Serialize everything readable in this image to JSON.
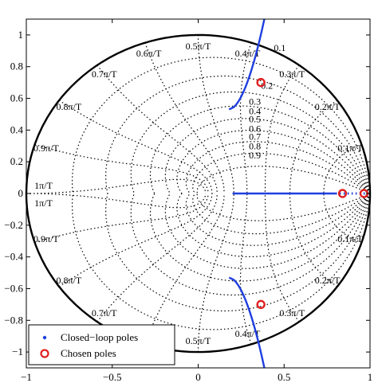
{
  "chart_data": {
    "type": "scatter",
    "xlim": [
      -1,
      1
    ],
    "ylim": [
      -1.1,
      1.1
    ],
    "x_ticks": [
      {
        "value": -1,
        "label": "−1"
      },
      {
        "value": -0.5,
        "label": "−0.5"
      },
      {
        "value": 0,
        "label": "0"
      },
      {
        "value": 0.5,
        "label": "0.5"
      },
      {
        "value": 1,
        "label": "1"
      }
    ],
    "y_ticks": [
      {
        "value": 1,
        "label": "1"
      },
      {
        "value": 0.8,
        "label": "0.8"
      },
      {
        "value": 0.6,
        "label": "0.6"
      },
      {
        "value": 0.4,
        "label": "0.4"
      },
      {
        "value": 0.2,
        "label": "0.2"
      },
      {
        "value": 0,
        "label": "0"
      },
      {
        "value": -0.2,
        "label": "−0.2"
      },
      {
        "value": -0.4,
        "label": "−0.4"
      },
      {
        "value": -0.6,
        "label": "−0.6"
      },
      {
        "value": -0.8,
        "label": "−0.8"
      },
      {
        "value": -1,
        "label": "−1"
      }
    ],
    "grid": "zgrid",
    "damping_values": [
      0.1,
      0.2,
      0.3,
      0.4,
      0.5,
      0.6,
      0.7,
      0.8,
      0.9
    ],
    "damping_labels": [
      "0.1",
      "0.2",
      "0.3",
      "0.4",
      "0.5",
      "0.6",
      "0.7",
      "0.8",
      "0.9"
    ],
    "natural_frequency_labels": [
      {
        "k": 0.1,
        "upper": "0.1π/T",
        "lower": "0.1π/T"
      },
      {
        "k": 0.2,
        "upper": "0.2π/T",
        "lower": "0.2π/T"
      },
      {
        "k": 0.3,
        "upper": "0.3π/T",
        "lower": "0.3π/T"
      },
      {
        "k": 0.4,
        "upper": "0.4π/T",
        "lower": "0.4π/T"
      },
      {
        "k": 0.5,
        "upper": "0.5π/T",
        "lower": "0.5π/T"
      },
      {
        "k": 0.6,
        "upper": "0.6π/T",
        "lower": "0.6π/T"
      },
      {
        "k": 0.7,
        "upper": "0.7π/T",
        "lower": "0.7π/T"
      },
      {
        "k": 0.8,
        "upper": "0.8π/T",
        "lower": "0.8π/T"
      },
      {
        "k": 0.9,
        "upper": "0.9π/T",
        "lower": "0.9π/T"
      },
      {
        "k": 1.0,
        "upper": "1π/T",
        "lower": "1π/T"
      }
    ],
    "unit_circle": true,
    "series": [
      {
        "name": "Closed−loop poles",
        "marker": "dot",
        "color": "#1f3fe0",
        "segments": [
          {
            "from": [
              0.2,
              0
            ],
            "to": [
              0.8,
              0
            ],
            "style": "solid"
          },
          {
            "from": [
              0.8,
              0
            ],
            "to": [
              0.99,
              0
            ],
            "style": "dotted"
          },
          {
            "from": [
              0.18,
              0.53
            ],
            "to": [
              0.385,
              1.1
            ],
            "style": "curve"
          },
          {
            "from": [
              0.18,
              -0.53
            ],
            "to": [
              0.385,
              -1.1
            ],
            "style": "curve"
          }
        ]
      },
      {
        "name": "Chosen poles",
        "marker": "circle",
        "color": "#e02020",
        "points": [
          {
            "x": 0.365,
            "y": 0.7
          },
          {
            "x": 0.365,
            "y": -0.7
          },
          {
            "x": 0.84,
            "y": 0
          },
          {
            "x": 0.965,
            "y": 0
          }
        ]
      }
    ],
    "legend": {
      "position": "bottom-left",
      "entries": [
        "Closed−loop poles",
        "Chosen poles"
      ]
    }
  }
}
